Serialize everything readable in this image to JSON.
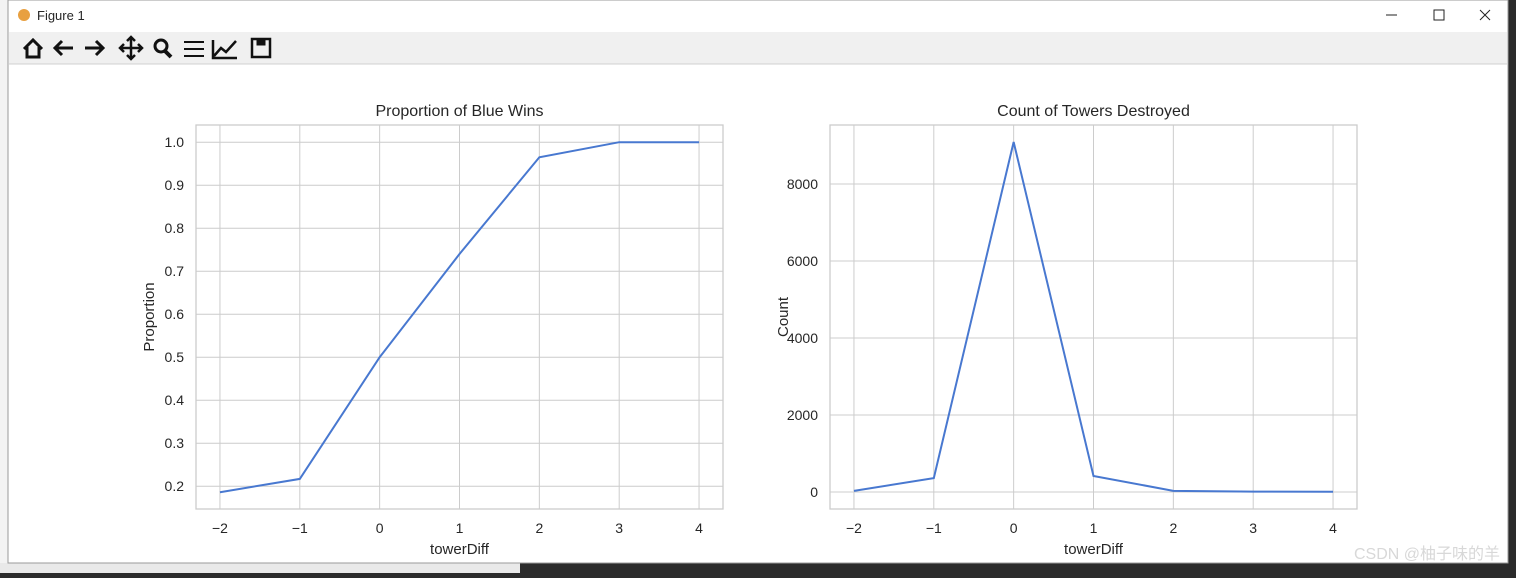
{
  "window": {
    "title": "Figure 1"
  },
  "watermark": "CSDN @柚子味的羊",
  "chart_data": [
    {
      "type": "line",
      "title": "Proportion of Blue Wins",
      "xlabel": "towerDiff",
      "ylabel": "Proportion",
      "x": [
        -2,
        -1,
        0,
        1,
        2,
        3,
        4
      ],
      "values": [
        0.186,
        0.217,
        0.5,
        0.74,
        0.965,
        1.0,
        1.0
      ],
      "color": "#4878d0",
      "xlim": [
        -2.3,
        4.3
      ],
      "ylim": [
        0.147,
        1.04
      ],
      "xticks": [
        {
          "value": -2,
          "label": "−2"
        },
        {
          "value": -1,
          "label": "−1"
        },
        0,
        1,
        2,
        3,
        4
      ],
      "yticks": [
        0.2,
        0.3,
        0.4,
        0.5,
        0.6,
        0.7,
        0.8,
        0.9,
        {
          "value": 1,
          "label": "1.0"
        }
      ],
      "grid": true
    },
    {
      "type": "line",
      "title": "Count of Towers Destroyed",
      "xlabel": "towerDiff",
      "ylabel": "Count",
      "x": [
        -2,
        -1,
        0,
        1,
        2,
        3,
        4
      ],
      "values": [
        30,
        360,
        9090,
        415,
        30,
        10,
        5
      ],
      "color": "#4878d0",
      "xlim": [
        -2.3,
        4.3
      ],
      "ylim": [
        -442,
        9532
      ],
      "xticks": [
        {
          "value": -2,
          "label": "−2"
        },
        {
          "value": -1,
          "label": "−1"
        },
        0,
        1,
        2,
        3,
        4
      ],
      "yticks": [
        0,
        2000,
        4000,
        6000,
        8000
      ],
      "grid": true
    }
  ]
}
